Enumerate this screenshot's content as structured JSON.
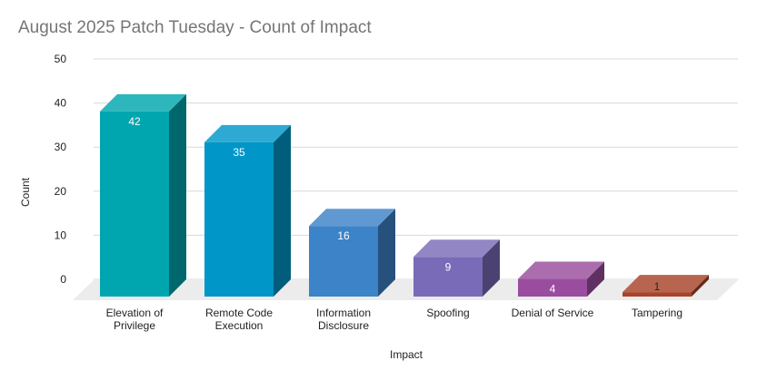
{
  "chart_data": {
    "type": "bar",
    "title": "August 2025 Patch Tuesday - Count of Impact",
    "xlabel": "Impact",
    "ylabel": "Count",
    "ylim": [
      0,
      50
    ],
    "yticks": [
      0,
      10,
      20,
      30,
      40,
      50
    ],
    "grid": true,
    "categories": [
      "Elevation of Privilege",
      "Remote Code Execution",
      "Information Disclosure",
      "Spoofing",
      "Denial of Service",
      "Tampering"
    ],
    "values": [
      42,
      35,
      16,
      9,
      4,
      1
    ],
    "colors": [
      "#00A6AF",
      "#0096C8",
      "#3D83C8",
      "#7A6BB8",
      "#9A4D9E",
      "#A9432A"
    ]
  }
}
